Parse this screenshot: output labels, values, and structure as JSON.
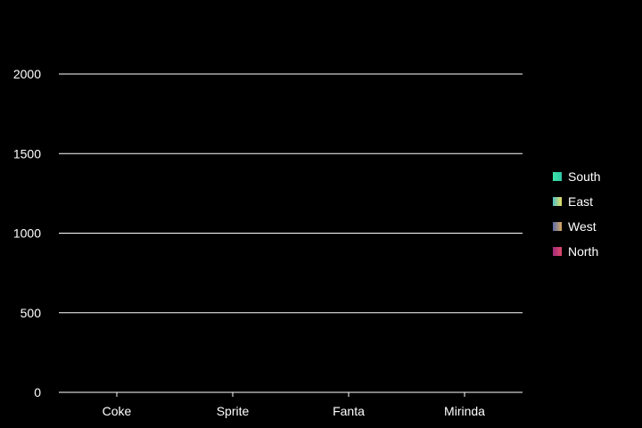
{
  "chart_data": {
    "type": "bar",
    "title": "",
    "xlabel": "",
    "ylabel": "",
    "categories": [
      "Coke",
      "Sprite",
      "Fanta",
      "Mirinda"
    ],
    "y_ticks": [
      "0",
      "500",
      "1000",
      "1500",
      "2000"
    ],
    "ylim": [
      0,
      2000
    ],
    "grid": true,
    "legend_position": "right",
    "series": [
      {
        "name": "South",
        "color_start": "#3be3a4",
        "color_end": "#2fc8a8",
        "values": [
          0,
          0,
          0,
          0
        ]
      },
      {
        "name": "East",
        "color_start": "#4fc0c8",
        "color_end": "#e8e060",
        "values": [
          0,
          0,
          0,
          0
        ]
      },
      {
        "name": "West",
        "color_start": "#5a6aa8",
        "color_end": "#d8a860",
        "values": [
          0,
          0,
          0,
          0
        ]
      },
      {
        "name": "North",
        "color_start": "#a02a7a",
        "color_end": "#e04a6a",
        "values": [
          0,
          0,
          0,
          0
        ]
      }
    ]
  }
}
